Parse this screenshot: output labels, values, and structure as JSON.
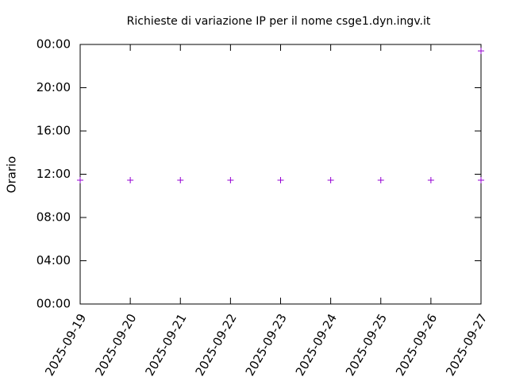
{
  "chart_data": {
    "type": "scatter",
    "title": "Richieste di variazione IP per il nome csge1.dyn.ingv.it",
    "y_label": "Orario",
    "x": [
      "2025-09-19",
      "2025-09-20",
      "2025-09-21",
      "2025-09-22",
      "2025-09-23",
      "2025-09-24",
      "2025-09-25",
      "2025-09-26",
      "2025-09-27",
      "2025-09-27"
    ],
    "series": [
      {
        "color": "#9400d3",
        "values": [
          11.45,
          11.45,
          11.45,
          11.45,
          11.45,
          11.45,
          11.45,
          11.45,
          11.45,
          23.4
        ]
      }
    ],
    "xlim": [
      "2025-09-19",
      "2025-09-27"
    ],
    "xticks": [
      "2025-09-19",
      "2025-09-20",
      "2025-09-21",
      "2025-09-22",
      "2025-09-23",
      "2025-09-24",
      "2025-09-25",
      "2025-09-26",
      "2025-09-27"
    ],
    "ylim": [
      0,
      24
    ],
    "yticks": [
      {
        "value": 0,
        "label": "00:00"
      },
      {
        "value": 4,
        "label": "04:00"
      },
      {
        "value": 8,
        "label": "08:00"
      },
      {
        "value": 12,
        "label": "12:00"
      },
      {
        "value": 16,
        "label": "16:00"
      },
      {
        "value": 20,
        "label": "20:00"
      },
      {
        "value": 24,
        "label": "00:00"
      }
    ]
  }
}
